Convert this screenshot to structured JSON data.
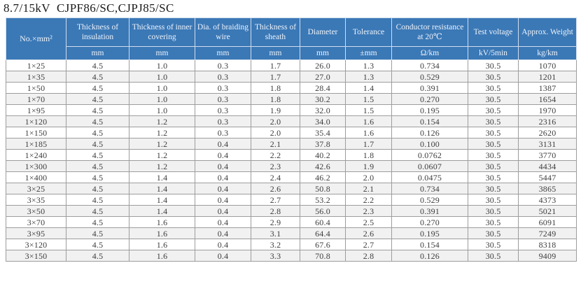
{
  "page_title": "8.7/15kV  CJPF86/SC,CJPJ85/SC",
  "colors": {
    "header_bg": "#3b78b6",
    "header_text": "#eef4fb",
    "header_line": "#cfdded",
    "grid_line": "#9d9d9d",
    "row_alt_bg": "#f1f1f1",
    "body_text": "#3d3d3d"
  },
  "table": {
    "columns": [
      {
        "label": "No.×mm²",
        "unit": ""
      },
      {
        "label": "Thickness of insulation",
        "unit": "mm"
      },
      {
        "label": "Thickness of inner covering",
        "unit": "mm"
      },
      {
        "label": "Dia. of braiding wire",
        "unit": "mm"
      },
      {
        "label": "Thickness of sheath",
        "unit": "mm"
      },
      {
        "label": "Diameter",
        "unit": "mm"
      },
      {
        "label": "Tolerance",
        "unit": "±mm"
      },
      {
        "label": "Conductor resistance at 20℃",
        "unit": "Ω/km"
      },
      {
        "label": "Test voltage",
        "unit": "kV/5min"
      },
      {
        "label": "Approx. Weight",
        "unit": "kg/km"
      }
    ],
    "rows": [
      [
        "1×25",
        "4.5",
        "1.0",
        "0.3",
        "1.7",
        "26.0",
        "1.3",
        "0.734",
        "30.5",
        "1070"
      ],
      [
        "1×35",
        "4.5",
        "1.0",
        "0.3",
        "1.7",
        "27.0",
        "1.3",
        "0.529",
        "30.5",
        "1201"
      ],
      [
        "1×50",
        "4.5",
        "1.0",
        "0.3",
        "1.8",
        "28.4",
        "1.4",
        "0.391",
        "30.5",
        "1387"
      ],
      [
        "1×70",
        "4.5",
        "1.0",
        "0.3",
        "1.8",
        "30.2",
        "1.5",
        "0.270",
        "30.5",
        "1654"
      ],
      [
        "1×95",
        "4.5",
        "1.0",
        "0.3",
        "1.9",
        "32.0",
        "1.5",
        "0.195",
        "30.5",
        "1970"
      ],
      [
        "1×120",
        "4.5",
        "1.2",
        "0.3",
        "2.0",
        "34.0",
        "1.6",
        "0.154",
        "30.5",
        "2316"
      ],
      [
        "1×150",
        "4.5",
        "1.2",
        "0.3",
        "2.0",
        "35.4",
        "1.6",
        "0.126",
        "30.5",
        "2620"
      ],
      [
        "1×185",
        "4.5",
        "1.2",
        "0.4",
        "2.1",
        "37.8",
        "1.7",
        "0.100",
        "30.5",
        "3131"
      ],
      [
        "1×240",
        "4.5",
        "1.2",
        "0.4",
        "2.2",
        "40.2",
        "1.8",
        "0.0762",
        "30.5",
        "3770"
      ],
      [
        "1×300",
        "4.5",
        "1.2",
        "0.4",
        "2.3",
        "42.6",
        "1.9",
        "0.0607",
        "30.5",
        "4434"
      ],
      [
        "1×400",
        "4.5",
        "1.4",
        "0.4",
        "2.4",
        "46.2",
        "2.0",
        "0.0475",
        "30.5",
        "5447"
      ],
      [
        "3×25",
        "4.5",
        "1.4",
        "0.4",
        "2.6",
        "50.8",
        "2.1",
        "0.734",
        "30.5",
        "3865"
      ],
      [
        "3×35",
        "4.5",
        "1.4",
        "0.4",
        "2.7",
        "53.2",
        "2.2",
        "0.529",
        "30.5",
        "4373"
      ],
      [
        "3×50",
        "4.5",
        "1.4",
        "0.4",
        "2.8",
        "56.0",
        "2.3",
        "0.391",
        "30.5",
        "5021"
      ],
      [
        "3×70",
        "4.5",
        "1.6",
        "0.4",
        "2.9",
        "60.4",
        "2.5",
        "0.270",
        "30.5",
        "6091"
      ],
      [
        "3×95",
        "4.5",
        "1.6",
        "0.4",
        "3.1",
        "64.4",
        "2.6",
        "0.195",
        "30.5",
        "7249"
      ],
      [
        "3×120",
        "4.5",
        "1.6",
        "0.4",
        "3.2",
        "67.6",
        "2.7",
        "0.154",
        "30.5",
        "8318"
      ],
      [
        "3×150",
        "4.5",
        "1.6",
        "0.4",
        "3.3",
        "70.8",
        "2.8",
        "0.126",
        "30.5",
        "9409"
      ]
    ]
  }
}
